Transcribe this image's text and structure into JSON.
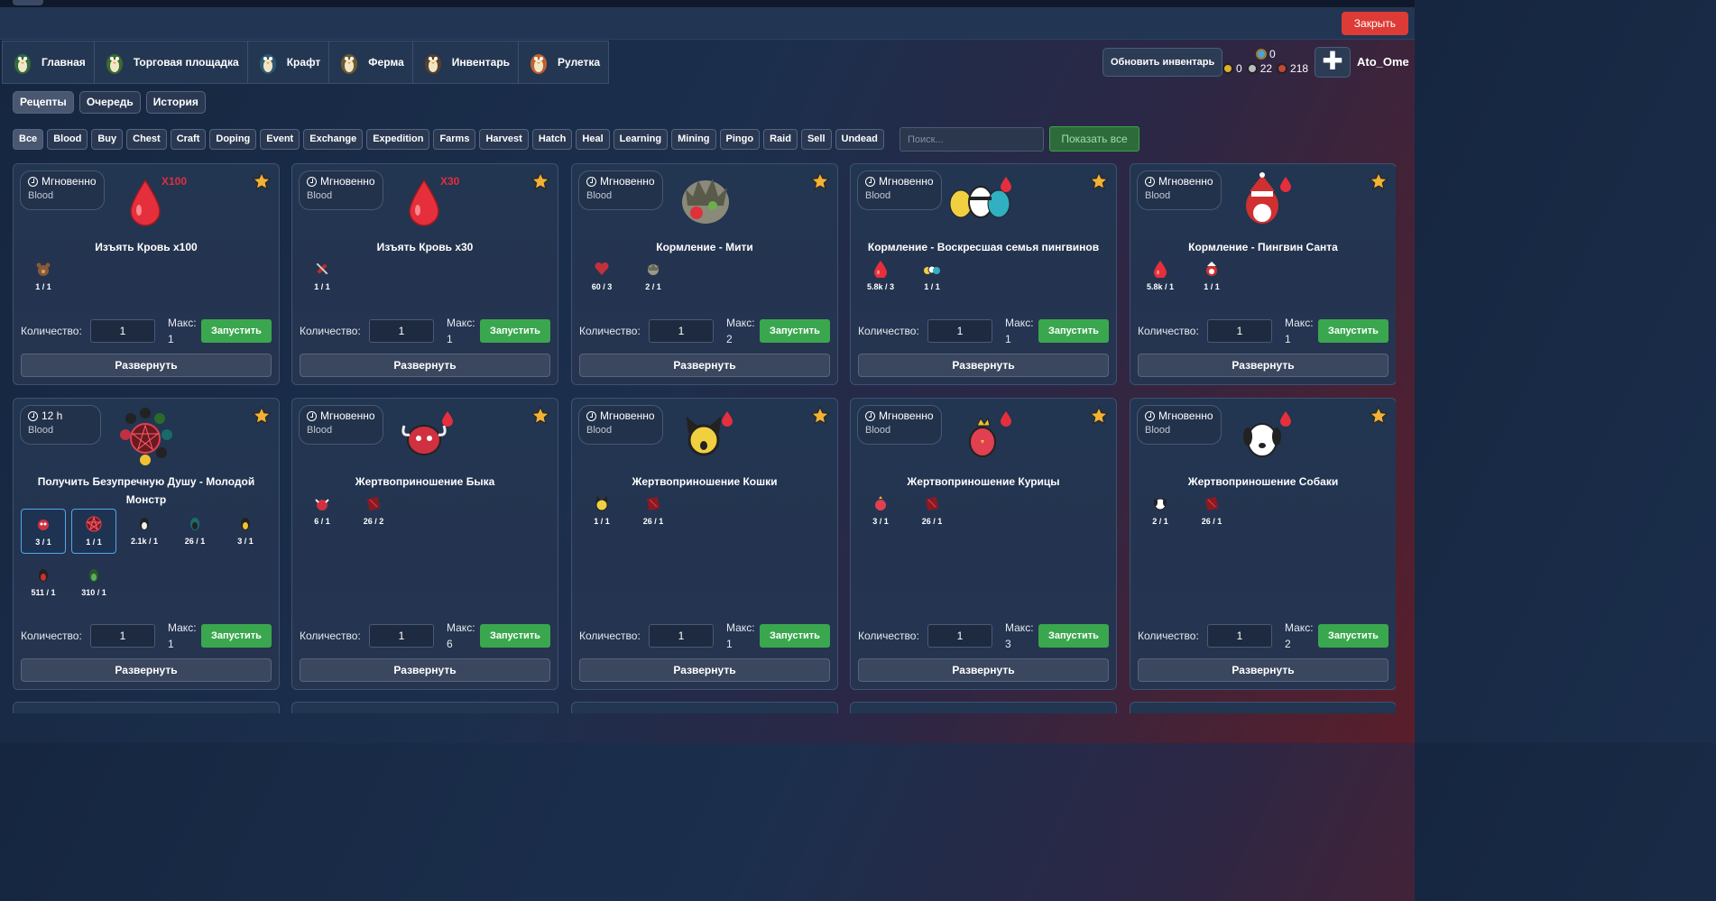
{
  "header": {
    "close_label": "Закрыть"
  },
  "nav": {
    "tabs": [
      {
        "label": "Главная",
        "icon": "penguin-home-icon"
      },
      {
        "label": "Торговая площадка",
        "icon": "penguin-trade-icon"
      },
      {
        "label": "Крафт",
        "icon": "penguin-craft-icon"
      },
      {
        "label": "Ферма",
        "icon": "penguin-farm-icon"
      },
      {
        "label": "Инвентарь",
        "icon": "penguin-inventory-icon"
      },
      {
        "label": "Рулетка",
        "icon": "roulette-bowl-icon"
      }
    ],
    "refresh_label": "Обновить инвентарь",
    "currency": {
      "top": "0",
      "gold": "0",
      "silver": "22",
      "red": "218"
    },
    "username": "Ato_Ome"
  },
  "subtabs": [
    "Рецепты",
    "Очередь",
    "История"
  ],
  "filters": [
    "Все",
    "Blood",
    "Buy",
    "Chest",
    "Craft",
    "Doping",
    "Event",
    "Exchange",
    "Expedition",
    "Farms",
    "Harvest",
    "Hatch",
    "Heal",
    "Learning",
    "Mining",
    "Pingo",
    "Raid",
    "Sell",
    "Undead"
  ],
  "search": {
    "placeholder": "Поиск..."
  },
  "show_all_label": "Показать все",
  "labels": {
    "quantity": "Количество:",
    "max": "Макс:",
    "run": "Запустить",
    "expand": "Развернуть"
  },
  "recipes": [
    {
      "time": "Мгновенно",
      "category": "Blood",
      "title": "Изъять Кровь x100",
      "badge": "X100",
      "art": "blood-drop",
      "max": "1",
      "qty": "1",
      "ingredients": [
        {
          "count": "1 / 1",
          "icon": "bear-icon"
        }
      ]
    },
    {
      "time": "Мгновенно",
      "category": "Blood",
      "title": "Изъять Кровь x30",
      "badge": "X30",
      "art": "blood-drop",
      "max": "1",
      "qty": "1",
      "ingredients": [
        {
          "count": "1 / 1",
          "icon": "syringe-icon"
        }
      ]
    },
    {
      "time": "Мгновенно",
      "category": "Blood",
      "title": "Кормление - Мити",
      "badge": "",
      "art": "monster",
      "max": "2",
      "qty": "1",
      "ingredients": [
        {
          "count": "60 / 3",
          "icon": "heart-icon"
        },
        {
          "count": "2 / 1",
          "icon": "creature-icon"
        }
      ]
    },
    {
      "time": "Мгновенно",
      "category": "Blood",
      "title": "Кормление - Воскресшая семья пингвинов",
      "badge": "",
      "art": "penguin-family",
      "max": "1",
      "qty": "1",
      "ingredients": [
        {
          "count": "5.8k / 3",
          "icon": "blood-drop-icon"
        },
        {
          "count": "1 / 1",
          "icon": "penguin-family-icon"
        }
      ]
    },
    {
      "time": "Мгновенно",
      "category": "Blood",
      "title": "Кормление - Пингвин Санта",
      "badge": "",
      "art": "santa",
      "max": "1",
      "qty": "1",
      "ingredients": [
        {
          "count": "5.8k / 1",
          "icon": "blood-drop-icon"
        },
        {
          "count": "1 / 1",
          "icon": "santa-icon"
        }
      ]
    },
    {
      "time": "12 h",
      "category": "Blood",
      "title": "Получить Безупречную Душу - Молодой Монстр",
      "badge": "",
      "art": "pentagram",
      "max": "1",
      "qty": "1",
      "ingredients": [
        {
          "count": "3 / 1",
          "icon": "red-monster-icon",
          "selected": true
        },
        {
          "count": "1 / 1",
          "icon": "pentagram-icon",
          "selected": true
        },
        {
          "count": "2.1k / 1",
          "icon": "dark-penguin-icon"
        },
        {
          "count": "26 / 1",
          "icon": "teal-penguin-icon"
        },
        {
          "count": "3 / 1",
          "icon": "yellow-penguin-icon"
        },
        {
          "count": "511 / 1",
          "icon": "red-penguin-icon"
        },
        {
          "count": "310 / 1",
          "icon": "green-penguin-icon"
        }
      ]
    },
    {
      "time": "Мгновенно",
      "category": "Blood",
      "title": "Жертвоприношение Быка",
      "badge": "",
      "art": "bull",
      "max": "6",
      "qty": "1",
      "ingredients": [
        {
          "count": "6 / 1",
          "icon": "bull-icon"
        },
        {
          "count": "26 / 2",
          "icon": "red-book-icon"
        }
      ]
    },
    {
      "time": "Мгновенно",
      "category": "Blood",
      "title": "Жертвоприношение Кошки",
      "badge": "",
      "art": "cat",
      "max": "1",
      "qty": "1",
      "ingredients": [
        {
          "count": "1 / 1",
          "icon": "cat-icon"
        },
        {
          "count": "26 / 1",
          "icon": "red-book-icon"
        }
      ]
    },
    {
      "time": "Мгновенно",
      "category": "Blood",
      "title": "Жертвоприношение Курицы",
      "badge": "",
      "art": "chicken",
      "max": "3",
      "qty": "1",
      "ingredients": [
        {
          "count": "3 / 1",
          "icon": "chicken-icon"
        },
        {
          "count": "26 / 1",
          "icon": "red-book-icon"
        }
      ]
    },
    {
      "time": "Мгновенно",
      "category": "Blood",
      "title": "Жертвоприношение Собаки",
      "badge": "",
      "art": "dog",
      "max": "2",
      "qty": "1",
      "ingredients": [
        {
          "count": "2 / 1",
          "icon": "dog-icon"
        },
        {
          "count": "26 / 1",
          "icon": "red-book-icon"
        }
      ]
    }
  ]
}
